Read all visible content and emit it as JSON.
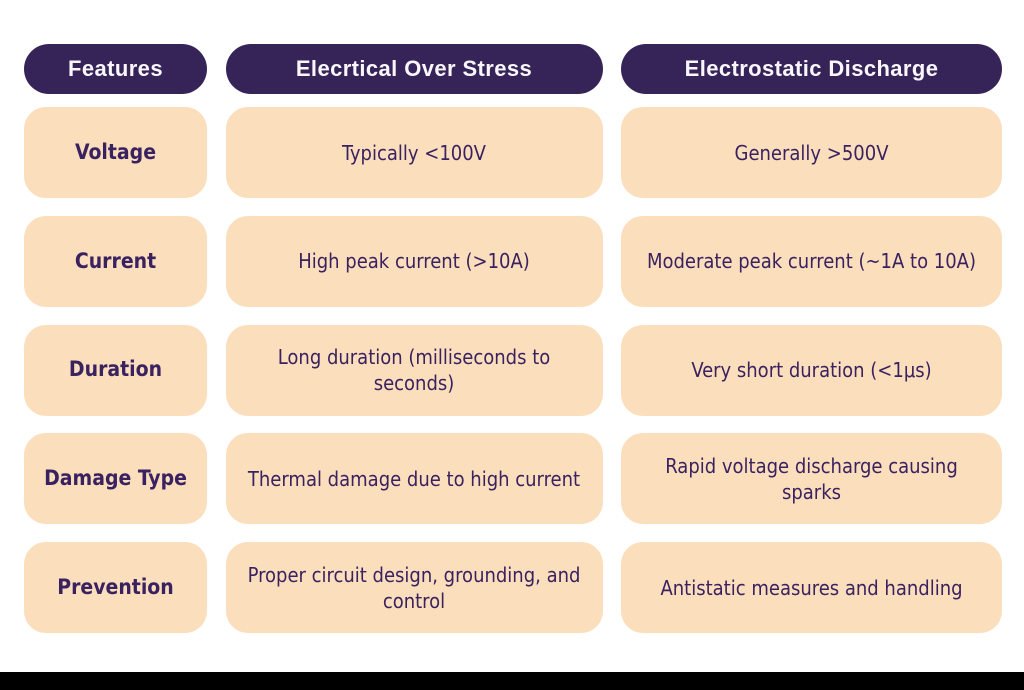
{
  "table": {
    "columns": [
      {
        "header": "Features"
      },
      {
        "header": "Elecrtical Over Stress"
      },
      {
        "header": "Electrostatic Discharge"
      }
    ],
    "rows": [
      {
        "feature": "Voltage",
        "eos": "Typically <100V",
        "esd": "Generally >500V"
      },
      {
        "feature": "Current",
        "eos": "High peak current (>10A)",
        "esd": "Moderate peak current (~1A to 10A)"
      },
      {
        "feature": "Duration",
        "eos": "Long duration (milliseconds to seconds)",
        "esd": "Very short duration (<1μs)"
      },
      {
        "feature": "Damage Type",
        "eos": "Thermal damage due to high current",
        "esd": "Rapid voltage discharge causing sparks"
      },
      {
        "feature": "Prevention",
        "eos": "Proper circuit design, grounding, and control",
        "esd": "Antistatic measures and handling"
      }
    ]
  },
  "colors": {
    "header_bg": "#362459",
    "header_text": "#F9F7FB",
    "cell_bg": "#FBDEBB",
    "cell_text": "#3A2261",
    "page_bg": "#FFFFFF",
    "bottom_bar": "#000000"
  }
}
